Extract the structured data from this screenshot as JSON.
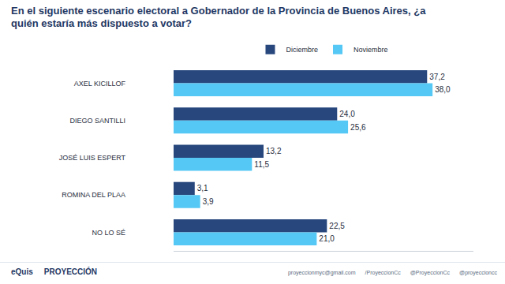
{
  "chart_data": {
    "type": "bar",
    "orientation": "horizontal",
    "title": "En el siguiente escenario electoral a Gobernador de la Provincia de Buenos Aires, ¿a quién estaría más dispuesto a votar?",
    "categories": [
      "AXEL KICILLOF",
      "DIEGO SANTILLI",
      "JOSÉ LUIS ESPERT",
      "ROMINA DEL PLAA",
      "NO LO SÉ"
    ],
    "series": [
      {
        "name": "Diciembre",
        "color": "#27477d",
        "values": [
          37.2,
          24.0,
          13.2,
          3.1,
          22.5
        ],
        "value_labels": [
          "37,2",
          "24,0",
          "13,2",
          "3,1",
          "22,5"
        ]
      },
      {
        "name": "Noviembre",
        "color": "#55c8f5",
        "values": [
          38.0,
          25.6,
          11.5,
          3.9,
          21.0
        ],
        "value_labels": [
          "38,0",
          "25,6",
          "11,5",
          "3,9",
          "21,0"
        ]
      }
    ],
    "xlim": [
      0,
      44
    ],
    "xticks": [],
    "grid": false,
    "legend": "top",
    "data_labels": true,
    "tick_labels": "y"
  },
  "footer": {
    "logos": [
      "eQuis",
      "PROYECCIÓN"
    ],
    "contacts": [
      "proyeccionmyc@gmail.com",
      "/ProyeccionCc",
      "@ProyeccionCc",
      "@proyeccioncc"
    ]
  }
}
